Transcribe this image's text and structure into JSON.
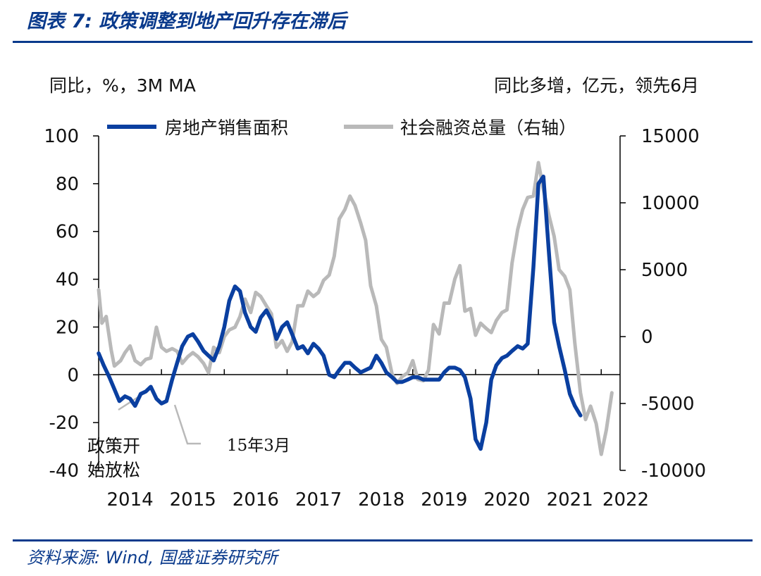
{
  "figure": {
    "title": "图表 7:  政策调整到地产回升存在滞后",
    "source": "资料来源:  Wind,  国盛证券研究所"
  },
  "chart_data": {
    "type": "line",
    "left_axis_label": "同比，%，3M MA",
    "right_axis_label": "同比多增，亿元，领先6月",
    "x_ticks": [
      "2014",
      "2015",
      "2016",
      "2017",
      "2018",
      "2019",
      "2020",
      "2021",
      "2022"
    ],
    "y_left": {
      "min": -40,
      "max": 100,
      "ticks": [
        "100",
        "80",
        "60",
        "40",
        "20",
        "0",
        "-20",
        "-40"
      ]
    },
    "y_right": {
      "min": -10000,
      "max": 15000,
      "ticks": [
        "15000",
        "10000",
        "5000",
        "0",
        "-5000",
        "-10000"
      ]
    },
    "annotations": [
      {
        "text_line1": "政策开",
        "text_line2": "始放松",
        "points_to": {
          "x": 2014.5,
          "y": -10
        }
      },
      {
        "text": "15年3月",
        "points_to": {
          "x": 2014.95,
          "y": -11
        }
      }
    ],
    "series": [
      {
        "name": "房地产销售面积",
        "axis": "left",
        "color": "#0a3fa0",
        "points": [
          [
            2014.0,
            9
          ],
          [
            2014.08,
            4
          ],
          [
            2014.17,
            -1
          ],
          [
            2014.25,
            -6
          ],
          [
            2014.33,
            -11
          ],
          [
            2014.42,
            -9
          ],
          [
            2014.5,
            -10
          ],
          [
            2014.58,
            -13
          ],
          [
            2014.67,
            -8
          ],
          [
            2014.75,
            -7
          ],
          [
            2014.83,
            -5
          ],
          [
            2014.92,
            -10
          ],
          [
            2015.0,
            -12
          ],
          [
            2015.08,
            -11
          ],
          [
            2015.17,
            -2
          ],
          [
            2015.25,
            5
          ],
          [
            2015.33,
            12
          ],
          [
            2015.42,
            16
          ],
          [
            2015.5,
            17
          ],
          [
            2015.58,
            14
          ],
          [
            2015.67,
            10
          ],
          [
            2015.75,
            8
          ],
          [
            2015.83,
            6
          ],
          [
            2015.92,
            12
          ],
          [
            2016.0,
            20
          ],
          [
            2016.08,
            31
          ],
          [
            2016.17,
            37
          ],
          [
            2016.25,
            35
          ],
          [
            2016.33,
            26
          ],
          [
            2016.42,
            20
          ],
          [
            2016.5,
            18
          ],
          [
            2016.58,
            24
          ],
          [
            2016.67,
            27
          ],
          [
            2016.75,
            23
          ],
          [
            2016.83,
            15
          ],
          [
            2016.92,
            20
          ],
          [
            2017.0,
            22
          ],
          [
            2017.08,
            17
          ],
          [
            2017.17,
            11
          ],
          [
            2017.25,
            12
          ],
          [
            2017.33,
            9
          ],
          [
            2017.42,
            13
          ],
          [
            2017.5,
            11
          ],
          [
            2017.58,
            8
          ],
          [
            2017.67,
            0
          ],
          [
            2017.75,
            -1
          ],
          [
            2017.83,
            2
          ],
          [
            2017.92,
            5
          ],
          [
            2018.0,
            5
          ],
          [
            2018.08,
            3
          ],
          [
            2018.17,
            1
          ],
          [
            2018.25,
            2
          ],
          [
            2018.33,
            3
          ],
          [
            2018.42,
            8
          ],
          [
            2018.5,
            5
          ],
          [
            2018.58,
            1
          ],
          [
            2018.67,
            -1
          ],
          [
            2018.75,
            -3
          ],
          [
            2018.83,
            -3
          ],
          [
            2018.92,
            -2
          ],
          [
            2019.0,
            -1
          ],
          [
            2019.08,
            -1
          ],
          [
            2019.17,
            -2
          ],
          [
            2019.25,
            -2
          ],
          [
            2019.33,
            -2
          ],
          [
            2019.42,
            -2
          ],
          [
            2019.5,
            1
          ],
          [
            2019.58,
            3
          ],
          [
            2019.67,
            3
          ],
          [
            2019.75,
            2
          ],
          [
            2019.83,
            -1
          ],
          [
            2019.92,
            -10
          ],
          [
            2020.0,
            -27
          ],
          [
            2020.08,
            -31
          ],
          [
            2020.17,
            -20
          ],
          [
            2020.25,
            -2
          ],
          [
            2020.33,
            4
          ],
          [
            2020.42,
            7
          ],
          [
            2020.5,
            8
          ],
          [
            2020.58,
            10
          ],
          [
            2020.67,
            12
          ],
          [
            2020.75,
            11
          ],
          [
            2020.83,
            13
          ],
          [
            2020.92,
            45
          ],
          [
            2021.0,
            80
          ],
          [
            2021.08,
            83
          ],
          [
            2021.17,
            50
          ],
          [
            2021.25,
            22
          ],
          [
            2021.33,
            12
          ],
          [
            2021.42,
            2
          ],
          [
            2021.5,
            -8
          ],
          [
            2021.58,
            -13
          ],
          [
            2021.67,
            -17
          ]
        ]
      },
      {
        "name": "社会融资总量（右轴）",
        "axis": "right",
        "color": "#b9b9b9",
        "points": [
          [
            2014.0,
            3500
          ],
          [
            2014.05,
            1000
          ],
          [
            2014.12,
            1500
          ],
          [
            2014.2,
            -1000
          ],
          [
            2014.25,
            -2200
          ],
          [
            2014.35,
            -1800
          ],
          [
            2014.42,
            -1200
          ],
          [
            2014.5,
            -700
          ],
          [
            2014.58,
            -1800
          ],
          [
            2014.67,
            -2100
          ],
          [
            2014.75,
            -1700
          ],
          [
            2014.83,
            -1600
          ],
          [
            2014.92,
            700
          ],
          [
            2015.0,
            -800
          ],
          [
            2015.08,
            -1100
          ],
          [
            2015.17,
            -900
          ],
          [
            2015.25,
            -1100
          ],
          [
            2015.33,
            -2000
          ],
          [
            2015.42,
            -1500
          ],
          [
            2015.5,
            -1200
          ],
          [
            2015.58,
            -1500
          ],
          [
            2015.67,
            -2000
          ],
          [
            2015.75,
            -2700
          ],
          [
            2015.83,
            -800
          ],
          [
            2015.92,
            -1200
          ],
          [
            2016.0,
            0
          ],
          [
            2016.08,
            500
          ],
          [
            2016.17,
            700
          ],
          [
            2016.25,
            1500
          ],
          [
            2016.33,
            2800
          ],
          [
            2016.42,
            1800
          ],
          [
            2016.5,
            3300
          ],
          [
            2016.58,
            3000
          ],
          [
            2016.67,
            2300
          ],
          [
            2016.75,
            1700
          ],
          [
            2016.83,
            -800
          ],
          [
            2016.92,
            -300
          ],
          [
            2017.0,
            -1100
          ],
          [
            2017.08,
            -400
          ],
          [
            2017.17,
            2300
          ],
          [
            2017.25,
            2300
          ],
          [
            2017.33,
            3400
          ],
          [
            2017.42,
            3000
          ],
          [
            2017.5,
            3300
          ],
          [
            2017.58,
            4200
          ],
          [
            2017.67,
            4600
          ],
          [
            2017.75,
            6000
          ],
          [
            2017.83,
            8800
          ],
          [
            2017.92,
            9500
          ],
          [
            2018.0,
            10500
          ],
          [
            2018.08,
            9800
          ],
          [
            2018.17,
            8500
          ],
          [
            2018.25,
            7200
          ],
          [
            2018.33,
            3800
          ],
          [
            2018.42,
            2300
          ],
          [
            2018.5,
            -200
          ],
          [
            2018.58,
            -800
          ],
          [
            2018.67,
            -2800
          ],
          [
            2018.75,
            -3500
          ],
          [
            2018.83,
            -3000
          ],
          [
            2018.92,
            -2700
          ],
          [
            2019.0,
            -1800
          ],
          [
            2019.08,
            -3200
          ],
          [
            2019.17,
            -3300
          ],
          [
            2019.25,
            -2500
          ],
          [
            2019.33,
            900
          ],
          [
            2019.42,
            200
          ],
          [
            2019.5,
            2500
          ],
          [
            2019.58,
            2500
          ],
          [
            2019.67,
            4300
          ],
          [
            2019.75,
            5300
          ],
          [
            2019.83,
            1900
          ],
          [
            2019.92,
            2100
          ],
          [
            2020.0,
            100
          ],
          [
            2020.08,
            1000
          ],
          [
            2020.17,
            600
          ],
          [
            2020.25,
            300
          ],
          [
            2020.33,
            1200
          ],
          [
            2020.42,
            1800
          ],
          [
            2020.5,
            2000
          ],
          [
            2020.58,
            5500
          ],
          [
            2020.67,
            8000
          ],
          [
            2020.75,
            9500
          ],
          [
            2020.83,
            10400
          ],
          [
            2020.92,
            10500
          ],
          [
            2021.0,
            13000
          ],
          [
            2021.08,
            11000
          ],
          [
            2021.17,
            9000
          ],
          [
            2021.25,
            7500
          ],
          [
            2021.33,
            5000
          ],
          [
            2021.42,
            4500
          ],
          [
            2021.5,
            3500
          ],
          [
            2021.58,
            -500
          ],
          [
            2021.67,
            -4200
          ],
          [
            2021.75,
            -6200
          ],
          [
            2021.83,
            -5200
          ],
          [
            2021.92,
            -6500
          ],
          [
            2022.0,
            -8800
          ],
          [
            2022.08,
            -7000
          ],
          [
            2022.17,
            -4200
          ]
        ]
      }
    ]
  }
}
